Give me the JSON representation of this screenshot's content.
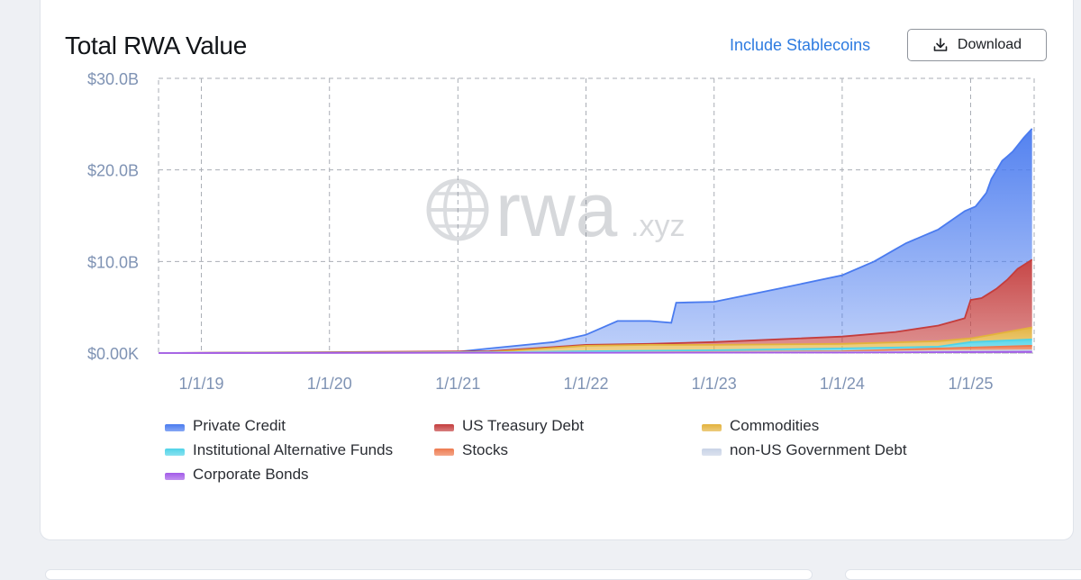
{
  "header": {
    "title": "Total RWA Value",
    "include_stablecoins_label": "Include Stablecoins",
    "download_label": "Download"
  },
  "watermark": {
    "brand": "rwa",
    "suffix": ".xyz"
  },
  "colors": {
    "private_credit": "#4a7bef",
    "us_treasury_debt": "#c43d3d",
    "commodities": "#e3b23c",
    "institutional_alternative_funds": "#4fd3e8",
    "stocks": "#ee7a4f",
    "non_us_government_debt": "#c9d3e6",
    "corporate_bonds": "#a35be8",
    "grid": "#a9adb5",
    "tick_label": "#7f93b4"
  },
  "chart_data": {
    "type": "area",
    "title": "Total RWA Value",
    "x_unit": "date",
    "xlim": [
      "2018-09-01",
      "2025-07-01"
    ],
    "ylim": [
      0,
      30
    ],
    "y_unit": "billion USD",
    "y_ticks": [
      0,
      10,
      20,
      30
    ],
    "y_tick_labels": [
      "$0.00K",
      "$10.0B",
      "$20.0B",
      "$30.0B"
    ],
    "x_ticks": [
      "2019-01-01",
      "2020-01-01",
      "2021-01-01",
      "2022-01-01",
      "2023-01-01",
      "2024-01-01",
      "2025-01-01"
    ],
    "x_tick_labels": [
      "1/1/19",
      "1/1/20",
      "1/1/21",
      "1/1/22",
      "1/1/23",
      "1/1/24",
      "1/1/25"
    ],
    "grid": true,
    "legend_position": "bottom",
    "stacked_cumulative": true,
    "series": [
      {
        "name": "Private Credit",
        "color": "#4a7bef",
        "cumulative_top": [
          [
            "2018-09-01",
            0.01
          ],
          [
            "2020-01-01",
            0.05
          ],
          [
            "2021-01-01",
            0.15
          ],
          [
            "2021-04-01",
            0.5
          ],
          [
            "2021-10-01",
            1.2
          ],
          [
            "2022-01-01",
            2.0
          ],
          [
            "2022-04-01",
            3.5
          ],
          [
            "2022-07-01",
            3.5
          ],
          [
            "2022-09-01",
            3.3
          ],
          [
            "2022-09-15",
            5.5
          ],
          [
            "2023-01-01",
            5.6
          ],
          [
            "2023-07-01",
            7.0
          ],
          [
            "2024-01-01",
            8.5
          ],
          [
            "2024-04-01",
            10.0
          ],
          [
            "2024-07-01",
            12.0
          ],
          [
            "2024-10-01",
            13.5
          ],
          [
            "2024-12-15",
            15.5
          ],
          [
            "2025-01-15",
            16.0
          ],
          [
            "2025-02-15",
            17.5
          ],
          [
            "2025-03-01",
            19.0
          ],
          [
            "2025-04-01",
            21.0
          ],
          [
            "2025-05-01",
            22.0
          ],
          [
            "2025-06-01",
            23.5
          ],
          [
            "2025-06-25",
            24.5
          ]
        ]
      },
      {
        "name": "US Treasury Debt",
        "color": "#c43d3d",
        "cumulative_top": [
          [
            "2018-09-01",
            0.0
          ],
          [
            "2021-04-01",
            0.2
          ],
          [
            "2022-01-01",
            0.9
          ],
          [
            "2022-07-01",
            1.0
          ],
          [
            "2023-01-01",
            1.2
          ],
          [
            "2023-07-01",
            1.5
          ],
          [
            "2024-01-01",
            1.8
          ],
          [
            "2024-06-01",
            2.3
          ],
          [
            "2024-10-01",
            3.0
          ],
          [
            "2024-12-15",
            3.8
          ],
          [
            "2025-01-01",
            5.8
          ],
          [
            "2025-02-01",
            6.0
          ],
          [
            "2025-03-15",
            7.0
          ],
          [
            "2025-04-15",
            8.0
          ],
          [
            "2025-05-15",
            9.2
          ],
          [
            "2025-06-25",
            10.2
          ]
        ]
      },
      {
        "name": "Commodities",
        "color": "#e3b23c",
        "cumulative_top": [
          [
            "2018-09-01",
            0.0
          ],
          [
            "2021-04-01",
            0.1
          ],
          [
            "2022-01-01",
            0.8
          ],
          [
            "2022-07-01",
            0.9
          ],
          [
            "2023-01-01",
            0.9
          ],
          [
            "2024-01-01",
            1.0
          ],
          [
            "2024-10-01",
            1.3
          ],
          [
            "2025-01-01",
            1.6
          ],
          [
            "2025-03-01",
            2.0
          ],
          [
            "2025-06-25",
            2.8
          ]
        ]
      },
      {
        "name": "Institutional Alternative Funds",
        "color": "#4fd3e8",
        "cumulative_top": [
          [
            "2018-09-01",
            0.0
          ],
          [
            "2021-06-01",
            0.1
          ],
          [
            "2022-01-01",
            0.2
          ],
          [
            "2023-01-01",
            0.3
          ],
          [
            "2024-01-01",
            0.5
          ],
          [
            "2024-10-01",
            0.7
          ],
          [
            "2025-01-01",
            1.2
          ],
          [
            "2025-06-25",
            1.5
          ]
        ]
      },
      {
        "name": "Stocks",
        "color": "#ee7a4f",
        "cumulative_top": [
          [
            "2018-09-01",
            0.0
          ],
          [
            "2022-01-01",
            0.05
          ],
          [
            "2024-01-01",
            0.2
          ],
          [
            "2025-01-01",
            0.6
          ],
          [
            "2025-06-25",
            0.8
          ]
        ]
      },
      {
        "name": "non-US Government Debt",
        "color": "#c9d3e6",
        "cumulative_top": [
          [
            "2018-09-01",
            0.0
          ],
          [
            "2024-01-01",
            0.1
          ],
          [
            "2025-06-25",
            0.3
          ]
        ]
      },
      {
        "name": "Corporate Bonds",
        "color": "#a35be8",
        "cumulative_top": [
          [
            "2018-09-01",
            0.0
          ],
          [
            "2024-01-01",
            0.05
          ],
          [
            "2025-06-25",
            0.15
          ]
        ]
      }
    ]
  }
}
